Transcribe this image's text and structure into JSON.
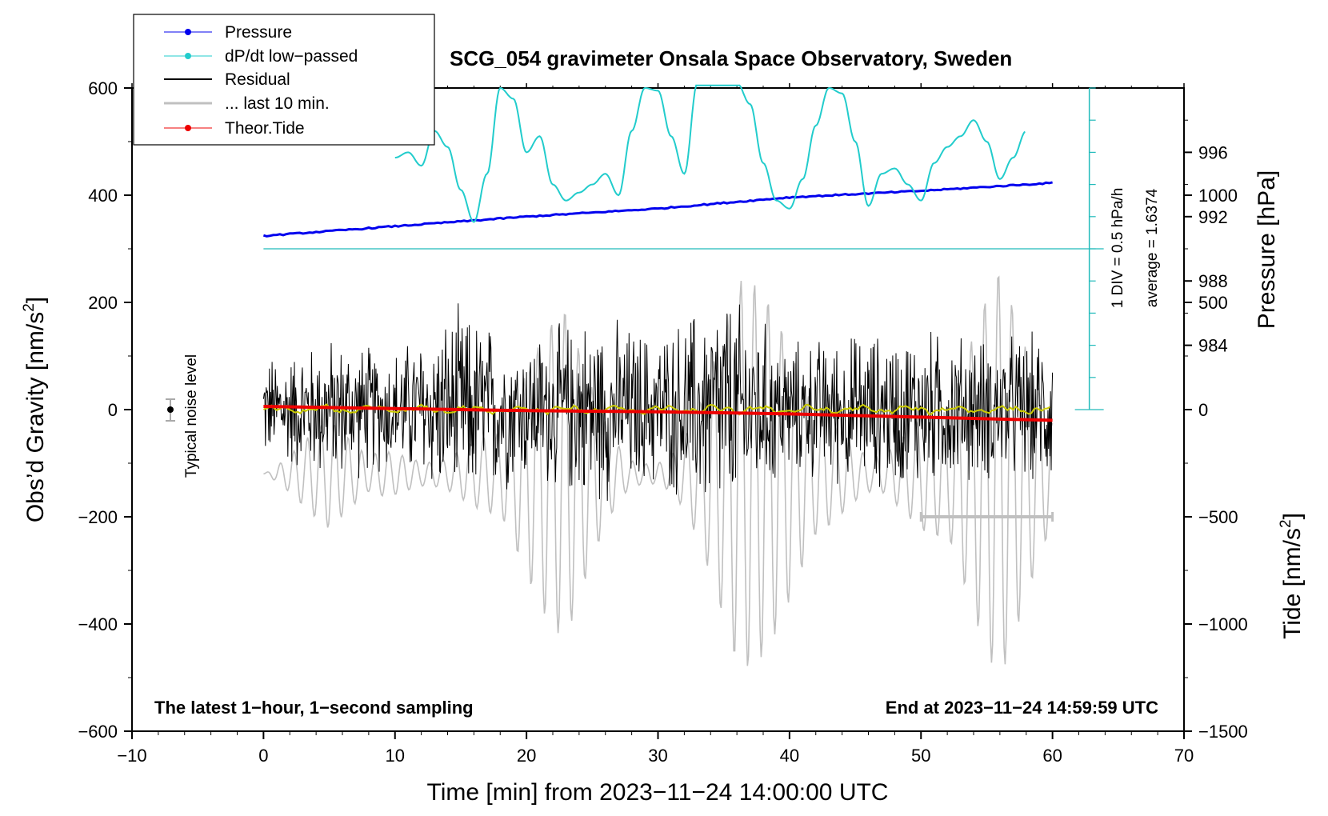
{
  "chart_data": {
    "type": "line",
    "title": "SCG_054 gravimeter Onsala Space Observatory, Sweden",
    "xlabel": "Time [min] from 2023−11−24 14:00:00 UTC",
    "ylabel_left": "Obs’d Gravity [nm/s",
    "ylabel_left_sup": "2",
    "ylabel_left_close": "]",
    "ylabel_pressure": "Pressure [hPa]",
    "ylabel_tide": "Tide [nm/s",
    "ylabel_tide_sup": "2",
    "ylabel_tide_close": "]",
    "xlim": [
      -10,
      70
    ],
    "ylim_gravity": [
      -600,
      600
    ],
    "ylim_tide": [
      -1500,
      1500
    ],
    "x_ticks": [
      "−10",
      "0",
      "10",
      "20",
      "30",
      "40",
      "50",
      "60",
      "70"
    ],
    "x_tick_values": [
      -10,
      0,
      10,
      20,
      30,
      40,
      50,
      60,
      70
    ],
    "gravity_ticks": [
      "600",
      "400",
      "200",
      "0",
      "−200",
      "−400",
      "−600"
    ],
    "gravity_tick_values": [
      600,
      400,
      200,
      0,
      -200,
      -400,
      -600
    ],
    "pressure_ticks": [
      "996",
      "992",
      "988",
      "984"
    ],
    "pressure_tick_gravity_equiv": [
      480,
      360,
      240,
      120
    ],
    "tide_ticks": [
      "1000",
      "500",
      "0",
      "−500",
      "−1000",
      "−1500"
    ],
    "tide_tick_values": [
      1000,
      500,
      0,
      -500,
      -1000,
      -1500
    ],
    "legend": {
      "pressure": "Pressure",
      "dpdt": "dP/dt low−passed",
      "residual": "Residual",
      "last10": "... last 10 min.",
      "tide": "Theor.Tide"
    },
    "colors": {
      "pressure": "#0000ee",
      "dpdt": "#22cccc",
      "residual": "#000000",
      "residual_lowpass": "#cccc00",
      "last10": "#c0c0c0",
      "tide": "#ee0000"
    },
    "notes": {
      "noise_label": "Typical noise level",
      "div_label": "1 DIV = 0.5 hPa/h",
      "average_label": "average = 1.6374",
      "bottom_left": "The latest 1−hour, 1−second sampling",
      "bottom_right": "End at 2023−11−24 14:59:59 UTC"
    },
    "series": [
      {
        "name": "Pressure (hPa)",
        "x": [
          0,
          10,
          20,
          30,
          40,
          50,
          60
        ],
        "values": [
          990.8,
          991.4,
          992.0,
          992.5,
          993.2,
          993.6,
          994.1
        ]
      },
      {
        "name": "dP/dt low-passed (gravity-axis equivalent)",
        "x": [
          10,
          11,
          12,
          13,
          14,
          15,
          16,
          17,
          18,
          19,
          20,
          21,
          22,
          23,
          24,
          25,
          26,
          27,
          28,
          29,
          30,
          31,
          32,
          33,
          34,
          35,
          36,
          37,
          38,
          39,
          40,
          41,
          42,
          43,
          44,
          45,
          46,
          47,
          48,
          49,
          50,
          51,
          52,
          53,
          54,
          55,
          56,
          57,
          58
        ],
        "values": [
          470,
          480,
          455,
          520,
          490,
          410,
          350,
          440,
          600,
          580,
          480,
          510,
          420,
          390,
          405,
          420,
          440,
          400,
          520,
          600,
          595,
          510,
          440,
          610,
          640,
          640,
          610,
          570,
          460,
          390,
          375,
          430,
          530,
          600,
          590,
          500,
          380,
          440,
          450,
          420,
          390,
          460,
          490,
          510,
          540,
          500,
          430,
          470,
          520
        ]
      },
      {
        "name": "Residual envelope (approx. amplitude)",
        "x": [
          0,
          5,
          10,
          15,
          20,
          25,
          30,
          35,
          40,
          45,
          50,
          55,
          60
        ],
        "values": [
          110,
          150,
          130,
          210,
          150,
          200,
          160,
          250,
          140,
          160,
          170,
          150,
          160
        ]
      },
      {
        "name": "Theor.Tide (nm/s2)",
        "x": [
          0,
          10,
          20,
          30,
          40,
          50,
          60
        ],
        "values": [
          15,
          5,
          -5,
          -10,
          -20,
          -35,
          -50
        ]
      }
    ]
  }
}
